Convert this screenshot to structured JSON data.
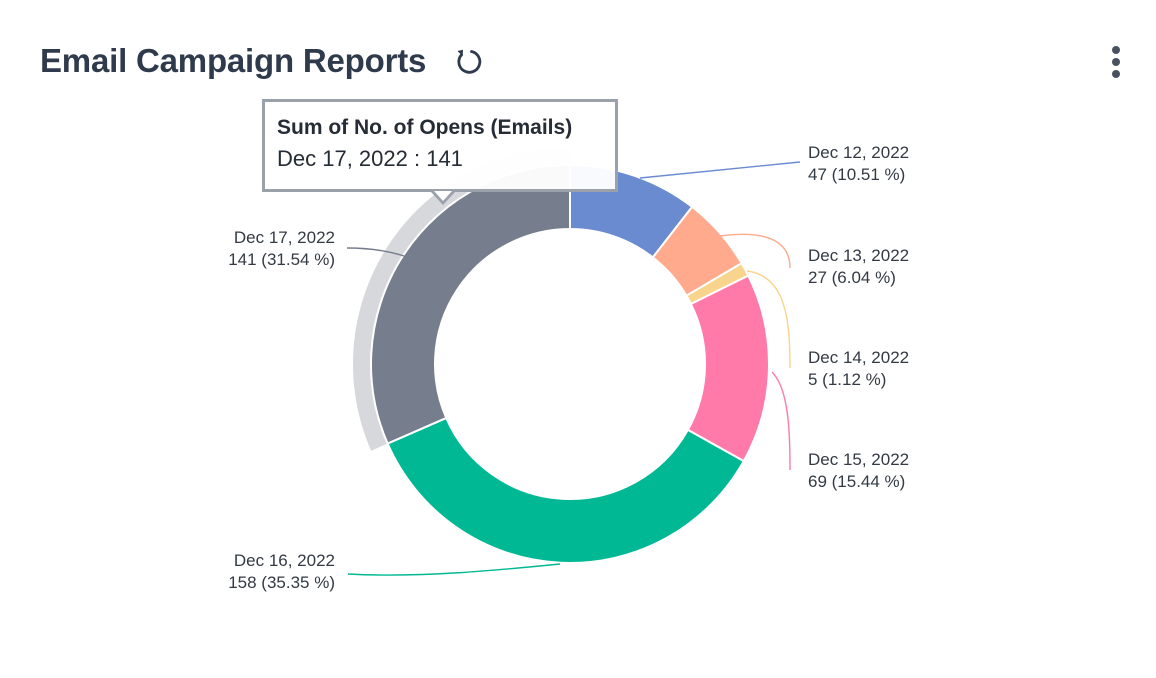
{
  "header": {
    "title": "Email Campaign Reports",
    "refresh_icon": "refresh-icon",
    "menu_icon": "kebab-menu-icon"
  },
  "tooltip": {
    "title": "Sum of No. of Opens (Emails)",
    "text": "Dec 17, 2022 : 141"
  },
  "chart_data": {
    "type": "pie",
    "variant": "donut",
    "series_label": "Sum of No. of Opens (Emails)",
    "highlighted": "Dec 17, 2022",
    "slices": [
      {
        "label": "Dec 12, 2022",
        "value": 47,
        "percent": "10.51 %",
        "color": "#6a8bd0"
      },
      {
        "label": "Dec 13, 2022",
        "value": 27,
        "percent": "6.04 %",
        "color": "#ffa98d"
      },
      {
        "label": "Dec 14, 2022",
        "value": 5,
        "percent": "1.12 %",
        "color": "#f9d48c"
      },
      {
        "label": "Dec 15, 2022",
        "value": 69,
        "percent": "15.44 %",
        "color": "#ff7aa8"
      },
      {
        "label": "Dec 16, 2022",
        "value": 158,
        "percent": "35.35 %",
        "color": "#00b894"
      },
      {
        "label": "Dec 17, 2022",
        "value": 141,
        "percent": "31.54 %",
        "color": "#767d8c"
      }
    ]
  }
}
